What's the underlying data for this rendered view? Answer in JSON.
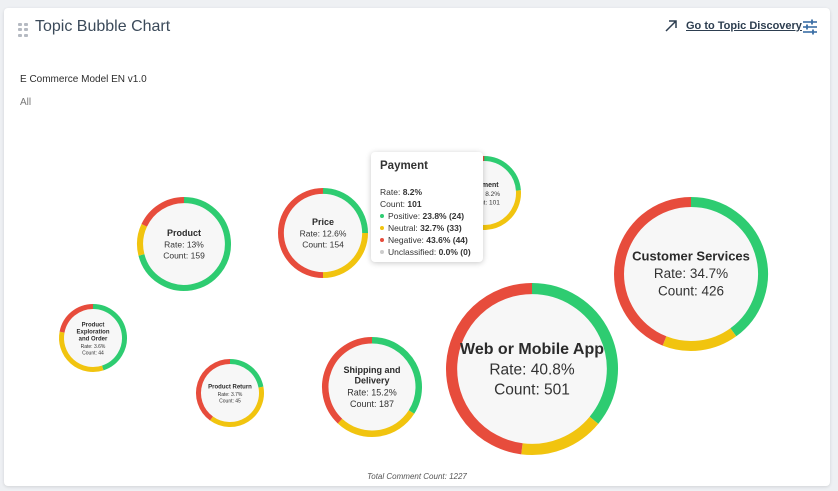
{
  "header": {
    "title": "Topic Bubble Chart",
    "goto_label": "Go to Topic Discovery",
    "model_name": "E Commerce Model EN v1.0",
    "filter_value": "All"
  },
  "colors": {
    "positive": "#2ecc71",
    "neutral": "#f1c40f",
    "negative": "#e74c3c",
    "unclassified": "#cccccc",
    "bubble_fill": "#f7f7f7"
  },
  "labels": {
    "rate_prefix": "Rate: ",
    "count_prefix": "Count: "
  },
  "chart_data": {
    "type": "bubble",
    "title": "Topic Bubble Chart",
    "total_label": "Total Comment Count: 1227",
    "bubbles": [
      {
        "topic": "Customer Services",
        "rate": "34.7%",
        "count": 426,
        "positive": 0.4,
        "neutral": 0.16,
        "negative": 0.44
      },
      {
        "topic": "Web or Mobile App",
        "rate": "40.8%",
        "count": 501,
        "positive": 0.36,
        "neutral": 0.16,
        "negative": 0.48
      },
      {
        "topic": "Shipping and Delivery",
        "rate": "15.2%",
        "count": 187,
        "positive": 0.34,
        "neutral": 0.28,
        "negative": 0.38
      },
      {
        "topic": "Price",
        "rate": "12.6%",
        "count": 154,
        "positive": 0.25,
        "neutral": 0.25,
        "negative": 0.5
      },
      {
        "topic": "Product",
        "rate": "13%",
        "count": 159,
        "positive": 0.71,
        "neutral": 0.11,
        "negative": 0.18
      },
      {
        "topic": "Payment",
        "rate": "8.2%",
        "count": 101,
        "positive": 0.238,
        "neutral": 0.327,
        "negative": 0.436
      },
      {
        "topic": "Product Exploration and Order",
        "rate": "3.6%",
        "count": 44,
        "positive": 0.45,
        "neutral": 0.33,
        "negative": 0.22
      },
      {
        "topic": "Product Return",
        "rate": "3.7%",
        "count": 45,
        "positive": 0.22,
        "neutral": 0.38,
        "negative": 0.4
      }
    ]
  },
  "tooltip": {
    "title": "Payment",
    "rate_label": "Rate: ",
    "rate_value": "8.2%",
    "count_label": "Count: ",
    "count_value": "101",
    "positive_label": "Positive: ",
    "positive_value": "23.8% (24)",
    "neutral_label": "Neutral: ",
    "neutral_value": "32.7% (33)",
    "negative_label": "Negative: ",
    "negative_value": "43.6% (44)",
    "unclassified_label": "Unclassified: ",
    "unclassified_value": "0.0% (0)"
  }
}
